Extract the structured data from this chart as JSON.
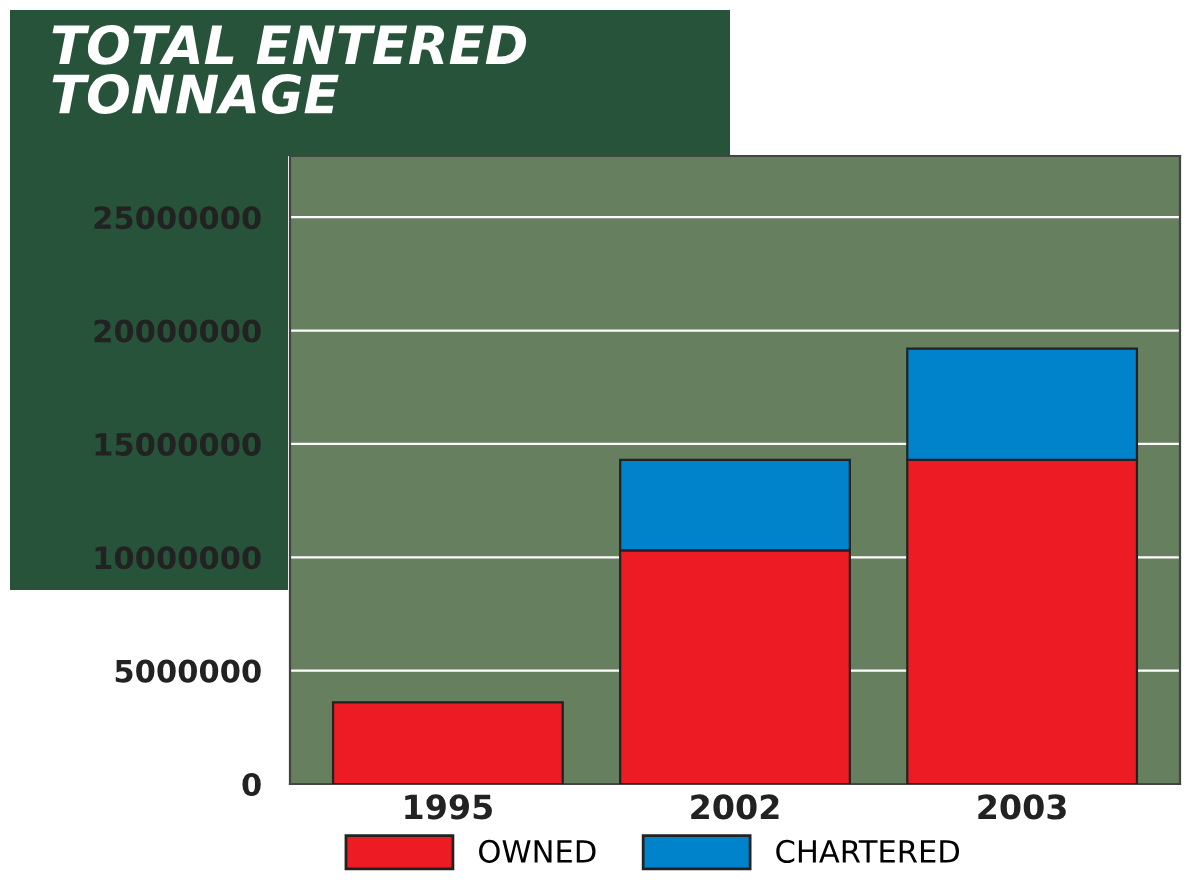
{
  "chart_data": {
    "type": "bar",
    "title": "TOTAL ENTERED\nTONNAGE",
    "categories": [
      "1995",
      "2002",
      "2003"
    ],
    "series": [
      {
        "name": "OWNED",
        "color": "#ed1c24",
        "values": [
          3600000,
          10300000,
          14300000
        ]
      },
      {
        "name": "CHARTERED",
        "color": "#0083ca",
        "values": [
          null,
          4000000,
          4900000
        ]
      }
    ],
    "stacked": true,
    "ylim": [
      0,
      27700000
    ],
    "yticks": [
      0,
      5000000,
      10000000,
      15000000,
      20000000,
      25000000
    ],
    "grid": "y",
    "legend": "bottom"
  }
}
